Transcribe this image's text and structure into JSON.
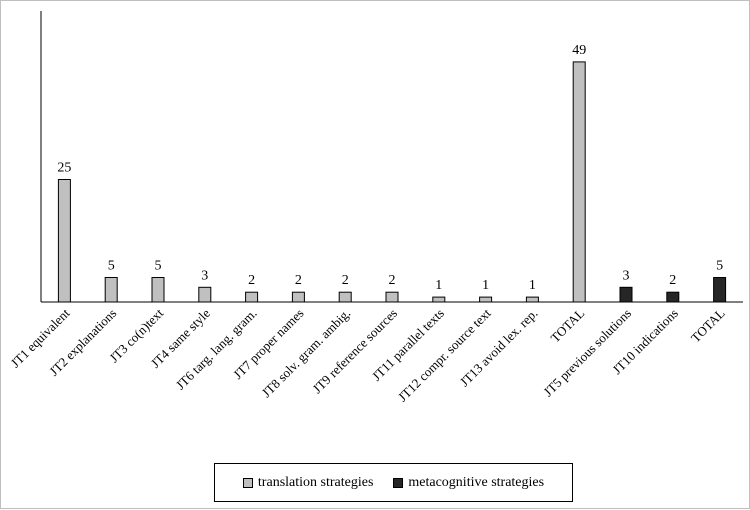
{
  "chart_data": {
    "type": "bar",
    "title": "",
    "xlabel": "",
    "ylabel": "",
    "ylim": [
      0,
      50
    ],
    "grid": false,
    "legend_position": "bottom",
    "categories": [
      "JT1 equivalent",
      "JT2 explanations",
      "JT3 co(n)text",
      "JT4 same style",
      "JT6 targ. lang. gram.",
      "JT7 proper names",
      "JT8 solv. gram. ambig.",
      "JT9 reference sources",
      "JT11 parallel texts",
      "JT12 compr. source text",
      "JT13 avoid lex. rep.",
      "TOTAL",
      "JT5 previous solutions",
      "JT10 indications",
      "TOTAL"
    ],
    "series": [
      {
        "name": "translation strategies",
        "color": "#c0c0c0",
        "values": [
          25,
          5,
          5,
          3,
          2,
          2,
          2,
          2,
          1,
          1,
          1,
          49,
          null,
          null,
          null
        ]
      },
      {
        "name": "metacognitive strategies",
        "color": "#262626",
        "values": [
          null,
          null,
          null,
          null,
          null,
          null,
          null,
          null,
          null,
          null,
          null,
          null,
          3,
          2,
          5
        ]
      }
    ]
  }
}
